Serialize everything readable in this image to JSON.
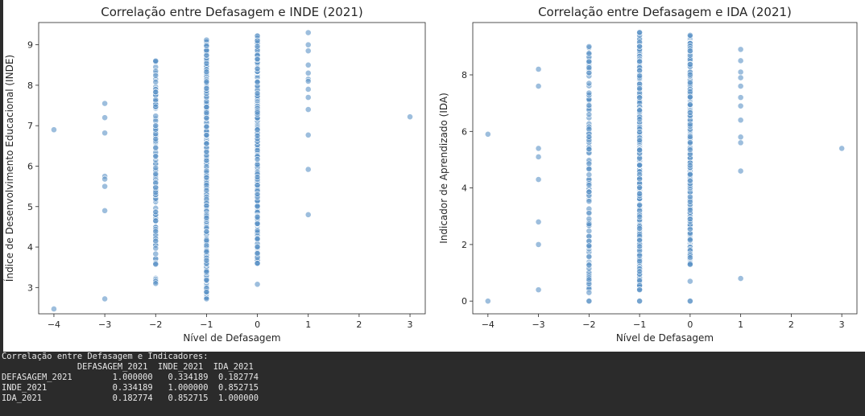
{
  "chart_data": [
    {
      "type": "scatter",
      "title": "Correlação entre Defasagem e INDE (2021)",
      "xlabel": "Nível de Defasagem",
      "ylabel": "Índice de Desenvolvimento Educacional (INDE)",
      "xlim": [
        -4.3,
        3.3
      ],
      "ylim": [
        2.35,
        9.55
      ],
      "xticks": [
        -4,
        -3,
        -2,
        -1,
        0,
        1,
        2,
        3
      ],
      "yticks": [
        3,
        4,
        5,
        6,
        7,
        8,
        9
      ],
      "color": "#5b93c7",
      "points": {
        "x": [
          -4,
          -4,
          -3,
          -3,
          -3,
          -3,
          -3,
          -3,
          -3,
          -3,
          1,
          1,
          1,
          1,
          1,
          1,
          1,
          1,
          1,
          1,
          1,
          1,
          1,
          3,
          0,
          0,
          0
        ],
        "y": [
          6.9,
          2.47,
          7.55,
          7.2,
          6.82,
          5.75,
          5.68,
          5.5,
          4.9,
          2.72,
          9.3,
          9.0,
          8.85,
          8.5,
          8.3,
          8.15,
          7.9,
          7.7,
          7.4,
          6.77,
          5.92,
          4.8,
          8.1,
          7.22,
          3.6,
          3.08,
          4.2
        ]
      },
      "dense_columns": [
        {
          "x": -2,
          "min": 3.1,
          "max": 8.6,
          "n": 120
        },
        {
          "x": -1,
          "min": 2.72,
          "max": 9.12,
          "n": 420
        },
        {
          "x": 0,
          "min": 3.6,
          "max": 9.22,
          "n": 300
        }
      ]
    },
    {
      "type": "scatter",
      "title": "Correlação entre Defasagem e IDA (2021)",
      "xlabel": "Nível de Defasagem",
      "ylabel": "Indicador de Aprendizado (IDA)",
      "xlim": [
        -4.3,
        3.3
      ],
      "ylim": [
        -0.45,
        9.85
      ],
      "xticks": [
        -4,
        -3,
        -2,
        -1,
        0,
        1,
        2,
        3
      ],
      "yticks": [
        0,
        2,
        4,
        6,
        8
      ],
      "color": "#5b93c7",
      "points": {
        "x": [
          -4,
          -4,
          -3,
          -3,
          -3,
          -3,
          -3,
          -3,
          -3,
          -3,
          1,
          1,
          1,
          1,
          1,
          1,
          1,
          1,
          1,
          1,
          1,
          1,
          3,
          -2,
          -2,
          -1,
          -1,
          0,
          0,
          0,
          0
        ],
        "y": [
          5.9,
          0.0,
          8.2,
          7.6,
          5.4,
          5.1,
          4.3,
          2.8,
          2.0,
          0.4,
          8.9,
          8.5,
          8.1,
          7.9,
          7.6,
          7.2,
          6.9,
          6.4,
          5.8,
          5.6,
          4.6,
          0.8,
          5.4,
          0.0,
          0.0,
          0.0,
          0.0,
          0.0,
          0.0,
          0.7,
          1.3
        ],
        "emphasis_note": ""
      },
      "dense_columns": [
        {
          "x": -2,
          "min": 0.3,
          "max": 9.0,
          "n": 130
        },
        {
          "x": -1,
          "min": 0.4,
          "max": 9.5,
          "n": 420
        },
        {
          "x": 0,
          "min": 1.3,
          "max": 9.4,
          "n": 300
        }
      ]
    }
  ],
  "console": {
    "lines": [
      "Correlação entre Defasagem e Indicadores:",
      "               DEFASAGEM_2021  INDE_2021  IDA_2021",
      "DEFASAGEM_2021        1.000000   0.334189  0.182774",
      "INDE_2021             0.334189   1.000000  0.852715",
      "IDA_2021              0.182774   0.852715  1.000000"
    ]
  }
}
